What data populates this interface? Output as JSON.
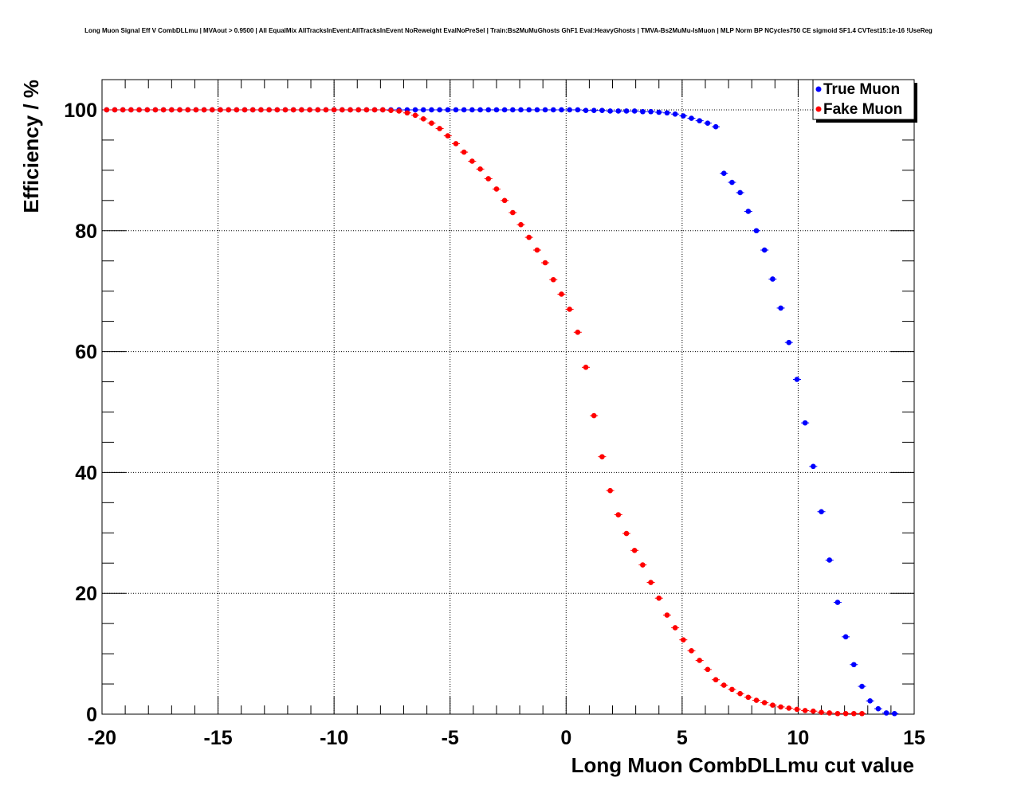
{
  "chart_data": {
    "type": "scatter",
    "title": "Long Muon Signal Eff V CombDLLmu | MVAout > 0.9500 | All EqualMix AllTracksInEvent:AllTracksInEvent NoReweight EvalNoPreSel | Train:Bs2MuMuGhosts GhF1 Eval:HeavyGhosts | TMVA-Bs2MuMu-IsMuon | MLP Norm BP NCycles750 CE sigmoid SF1.4 CVTest15:1e-16 !UseReg",
    "xlabel": "Long Muon CombDLLmu cut value",
    "ylabel": "Efficiency / %",
    "xlim": [
      -20,
      15
    ],
    "ylim": [
      0,
      105
    ],
    "x_ticks": [
      -20,
      -15,
      -10,
      -5,
      0,
      5,
      10,
      15
    ],
    "y_ticks": [
      0,
      20,
      40,
      60,
      80,
      100
    ],
    "grid": true,
    "legend_position": "top-right",
    "x": [
      -19.8,
      -19.45,
      -19.1,
      -18.75,
      -18.4,
      -18.05,
      -17.7,
      -17.35,
      -17.0,
      -16.65,
      -16.3,
      -15.95,
      -15.6,
      -15.25,
      -14.9,
      -14.55,
      -14.2,
      -13.85,
      -13.5,
      -13.15,
      -12.8,
      -12.45,
      -12.1,
      -11.75,
      -11.4,
      -11.05,
      -10.7,
      -10.35,
      -10.0,
      -9.65,
      -9.3,
      -8.95,
      -8.6,
      -8.25,
      -7.9,
      -7.55,
      -7.2,
      -6.85,
      -6.5,
      -6.15,
      -5.8,
      -5.45,
      -5.1,
      -4.75,
      -4.4,
      -4.05,
      -3.7,
      -3.35,
      -3.0,
      -2.65,
      -2.3,
      -1.95,
      -1.6,
      -1.25,
      -0.9,
      -0.55,
      -0.2,
      0.15,
      0.5,
      0.85,
      1.2,
      1.55,
      1.9,
      2.25,
      2.6,
      2.95,
      3.3,
      3.65,
      4.0,
      4.35,
      4.7,
      5.05,
      5.4,
      5.75,
      6.1,
      6.45,
      6.8,
      7.15,
      7.5,
      7.85,
      8.2,
      8.55,
      8.9,
      9.25,
      9.6,
      9.95,
      10.3,
      10.65,
      11.0,
      11.35,
      11.7,
      12.05,
      12.4,
      12.75,
      13.1,
      13.45,
      13.8,
      14.15,
      14.5
    ],
    "series": [
      {
        "name": "True Muon",
        "color": "#0000ff",
        "values": [
          100,
          100,
          100,
          100,
          100,
          100,
          100,
          100,
          100,
          100,
          100,
          100,
          100,
          100,
          100,
          100,
          100,
          100,
          100,
          100,
          100,
          100,
          100,
          100,
          100,
          100,
          100,
          100,
          100,
          100,
          100,
          100,
          100,
          100,
          100,
          100,
          100,
          100,
          100,
          100,
          100,
          100,
          100,
          100,
          100,
          100,
          100,
          100,
          100,
          100,
          100,
          100,
          100,
          100,
          100,
          100,
          100,
          100,
          100,
          99.9,
          99.9,
          99.9,
          99.8,
          99.8,
          99.8,
          99.8,
          99.7,
          99.7,
          99.6,
          99.5,
          99.3,
          99.0,
          98.6,
          98.2,
          97.8,
          97.2,
          89.5,
          88.0,
          86.3,
          83.2,
          80.0,
          76.8,
          72.0,
          67.2,
          61.5,
          55.4,
          48.2,
          41.0,
          33.5,
          25.5,
          18.5,
          12.8,
          8.2,
          4.6,
          2.2,
          0.9,
          0.2,
          0.1
        ]
      },
      {
        "name": "Fake Muon",
        "color": "#ff0000",
        "values": [
          100,
          100,
          100,
          100,
          100,
          100,
          100,
          100,
          100,
          100,
          100,
          100,
          100,
          100,
          100,
          100,
          100,
          100,
          100,
          100,
          100,
          100,
          100,
          100,
          100,
          100,
          100,
          100,
          100,
          100,
          100,
          100,
          100,
          100,
          100,
          99.9,
          99.8,
          99.5,
          99.1,
          98.5,
          97.8,
          96.9,
          95.7,
          94.4,
          93.0,
          91.5,
          90.2,
          88.6,
          86.9,
          85.0,
          83.0,
          81.0,
          78.9,
          76.8,
          74.7,
          71.9,
          69.5,
          67.0,
          63.2,
          57.4,
          49.4,
          42.6,
          37.0,
          33.0,
          29.9,
          27.1,
          24.7,
          21.8,
          19.2,
          16.4,
          14.3,
          12.3,
          10.5,
          8.9,
          7.4,
          5.7,
          4.8,
          4.1,
          3.4,
          2.8,
          2.3,
          1.9,
          1.5,
          1.2,
          1.0,
          0.8,
          0.6,
          0.5,
          0.3,
          0.2,
          0.1,
          0.1,
          0.1,
          0.1
        ]
      }
    ]
  }
}
